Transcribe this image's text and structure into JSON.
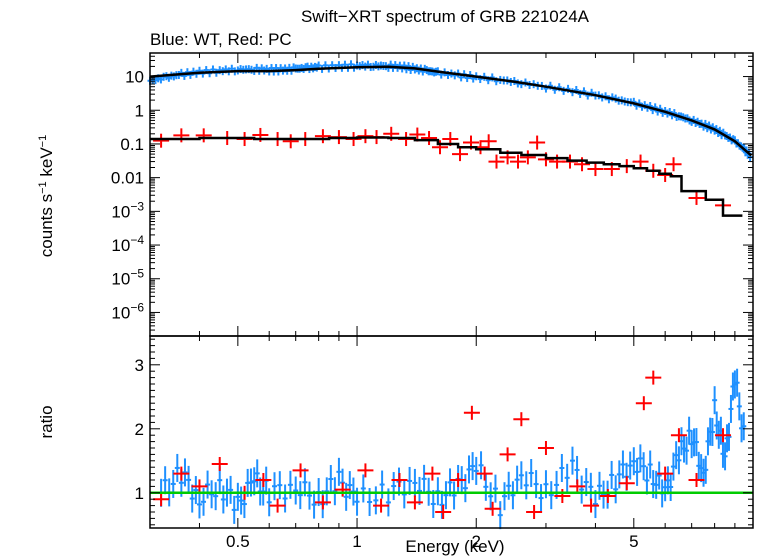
{
  "chart_data": {
    "type": "scatter",
    "title": "Swift−XRT spectrum of GRB 221024A",
    "subtitle": "Blue: WT, Red: PC",
    "xlabel": "Energy (keV)",
    "x_scale": "log",
    "xlim": [
      0.3,
      10
    ],
    "x_ticks": [
      0.5,
      1,
      2,
      5
    ],
    "x_tick_labels": [
      "0.5",
      "1",
      "2",
      "5"
    ],
    "panels": [
      {
        "id": "spectrum",
        "ylabel_base": "counts s",
        "ylabel_exp1": "−1",
        "ylabel_mid": " keV",
        "ylabel_exp2": "−1",
        "y_scale": "log",
        "ylim": [
          2e-07,
          50
        ],
        "y_ticks": [
          {
            "v": 10,
            "t": "10"
          },
          {
            "v": 1,
            "t": "1"
          },
          {
            "v": 0.1,
            "t": "0.1"
          },
          {
            "v": 0.01,
            "t": "0.01"
          },
          {
            "v": 0.001,
            "base": "10",
            "exp": "−3"
          },
          {
            "v": 0.0001,
            "base": "10",
            "exp": "−4"
          },
          {
            "v": 1e-05,
            "base": "10",
            "exp": "−5"
          },
          {
            "v": 1e-06,
            "base": "10",
            "exp": "−6"
          }
        ],
        "series": [
          {
            "name": "WT",
            "color": "#1e90ff",
            "points": [
              [
                0.3,
                7.5
              ],
              [
                0.33,
                9.5
              ],
              [
                0.36,
                11.5
              ],
              [
                0.4,
                13.5
              ],
              [
                0.45,
                15
              ],
              [
                0.5,
                16
              ],
              [
                0.55,
                16.5
              ],
              [
                0.6,
                16
              ],
              [
                0.65,
                16
              ],
              [
                0.7,
                17
              ],
              [
                0.75,
                18
              ],
              [
                0.8,
                19
              ],
              [
                0.9,
                20
              ],
              [
                1.0,
                21
              ],
              [
                1.1,
                21
              ],
              [
                1.2,
                20.5
              ],
              [
                1.3,
                19.5
              ],
              [
                1.4,
                17
              ],
              [
                1.5,
                15
              ],
              [
                1.6,
                13
              ],
              [
                1.8,
                11
              ],
              [
                2.0,
                9.5
              ],
              [
                2.3,
                8
              ],
              [
                2.6,
                6.5
              ],
              [
                3.0,
                5
              ],
              [
                3.5,
                3.8
              ],
              [
                4.0,
                2.8
              ],
              [
                4.5,
                2.1
              ],
              [
                5.0,
                1.6
              ],
              [
                5.5,
                1.2
              ],
              [
                6.0,
                0.9
              ],
              [
                6.5,
                0.68
              ],
              [
                7.0,
                0.5
              ],
              [
                7.5,
                0.37
              ],
              [
                8.0,
                0.27
              ],
              [
                8.5,
                0.18
              ],
              [
                9.0,
                0.12
              ],
              [
                9.5,
                0.07
              ],
              [
                9.9,
                0.04
              ]
            ]
          },
          {
            "name": "PC",
            "color": "#ff0000",
            "points": [
              [
                0.32,
                0.125
              ],
              [
                0.36,
                0.18
              ],
              [
                0.41,
                0.18
              ],
              [
                0.47,
                0.15
              ],
              [
                0.52,
                0.14
              ],
              [
                0.57,
                0.185
              ],
              [
                0.63,
                0.14
              ],
              [
                0.68,
                0.12
              ],
              [
                0.74,
                0.14
              ],
              [
                0.82,
                0.17
              ],
              [
                0.9,
                0.16
              ],
              [
                0.98,
                0.14
              ],
              [
                1.05,
                0.17
              ],
              [
                1.12,
                0.16
              ],
              [
                1.22,
                0.2
              ],
              [
                1.33,
                0.14
              ],
              [
                1.42,
                0.19
              ],
              [
                1.52,
                0.15
              ],
              [
                1.62,
                0.08
              ],
              [
                1.72,
                0.14
              ],
              [
                1.82,
                0.05
              ],
              [
                1.94,
                0.11
              ],
              [
                2.05,
                0.08
              ],
              [
                2.15,
                0.12
              ],
              [
                2.25,
                0.03
              ],
              [
                2.4,
                0.04
              ],
              [
                2.55,
                0.03
              ],
              [
                2.7,
                0.04
              ],
              [
                2.85,
                0.11
              ],
              [
                3.0,
                0.035
              ],
              [
                3.2,
                0.03
              ],
              [
                3.45,
                0.03
              ],
              [
                3.7,
                0.025
              ],
              [
                4.0,
                0.018
              ],
              [
                4.4,
                0.018
              ],
              [
                4.8,
                0.022
              ],
              [
                5.2,
                0.03
              ],
              [
                5.6,
                0.016
              ],
              [
                6.0,
                0.012
              ],
              [
                6.3,
                0.025
              ],
              [
                7.2,
                0.0025
              ],
              [
                8.4,
                0.0015
              ]
            ]
          }
        ],
        "models": [
          {
            "name": "WT model",
            "color": "#000000",
            "points": [
              [
                0.3,
                10
              ],
              [
                0.35,
                11.5
              ],
              [
                0.4,
                13
              ],
              [
                0.5,
                14.5
              ],
              [
                0.6,
                14.5
              ],
              [
                0.7,
                15.5
              ],
              [
                0.8,
                17
              ],
              [
                1.0,
                19
              ],
              [
                1.2,
                19.5
              ],
              [
                1.4,
                17.5
              ],
              [
                1.6,
                14
              ],
              [
                2.0,
                10
              ],
              [
                2.5,
                7
              ],
              [
                3.0,
                5
              ],
              [
                4.0,
                2.8
              ],
              [
                5.0,
                1.6
              ],
              [
                6.0,
                0.9
              ],
              [
                7.0,
                0.5
              ],
              [
                8.0,
                0.27
              ],
              [
                9.0,
                0.12
              ],
              [
                9.9,
                0.045
              ]
            ]
          },
          {
            "name": "PC model",
            "color": "#000000",
            "steps": [
              [
                0.3,
                0.14
              ],
              [
                0.4,
                0.15
              ],
              [
                0.55,
                0.14
              ],
              [
                0.7,
                0.14
              ],
              [
                0.85,
                0.15
              ],
              [
                1.0,
                0.155
              ],
              [
                1.2,
                0.15
              ],
              [
                1.4,
                0.13
              ],
              [
                1.6,
                0.1
              ],
              [
                1.8,
                0.08
              ],
              [
                2.0,
                0.07
              ],
              [
                2.3,
                0.055
              ],
              [
                2.6,
                0.047
              ],
              [
                3.0,
                0.038
              ],
              [
                3.4,
                0.032
              ],
              [
                3.8,
                0.028
              ],
              [
                4.2,
                0.025
              ],
              [
                4.6,
                0.022
              ],
              [
                5.0,
                0.019
              ],
              [
                5.4,
                0.016
              ],
              [
                5.8,
                0.013
              ],
              [
                6.2,
                0.011
              ],
              [
                6.6,
                0.004
              ],
              [
                7.6,
                0.0022
              ],
              [
                8.4,
                0.00075
              ],
              [
                9.4,
                0.00075
              ]
            ]
          }
        ]
      },
      {
        "id": "ratio",
        "ylabel": "ratio",
        "y_scale": "linear",
        "ylim": [
          0.45,
          3.45
        ],
        "y_ticks": [
          {
            "v": 1,
            "t": "1"
          },
          {
            "v": 2,
            "t": "2"
          },
          {
            "v": 3,
            "t": "3"
          }
        ],
        "reference_line": {
          "value": 1,
          "color": "#00cc00"
        },
        "series": [
          {
            "name": "WT ratio",
            "color": "#1e90ff",
            "points": [
              [
                0.32,
                1.0
              ],
              [
                0.36,
                1.3
              ],
              [
                0.4,
                0.9
              ],
              [
                0.45,
                1.1
              ],
              [
                0.5,
                0.8
              ],
              [
                0.55,
                1.2
              ],
              [
                0.6,
                1.0
              ],
              [
                0.7,
                1.1
              ],
              [
                0.8,
                0.9
              ],
              [
                0.9,
                1.2
              ],
              [
                1.0,
                0.9
              ],
              [
                1.2,
                1.0
              ],
              [
                1.4,
                1.2
              ],
              [
                1.6,
                0.9
              ],
              [
                1.8,
                1.1
              ],
              [
                2.0,
                1.4
              ],
              [
                2.3,
                0.8
              ],
              [
                2.6,
                1.3
              ],
              [
                3.0,
                1.0
              ],
              [
                3.5,
                1.4
              ],
              [
                4.0,
                0.9
              ],
              [
                4.5,
                1.2
              ],
              [
                5.0,
                1.5
              ],
              [
                5.5,
                1.3
              ],
              [
                6.0,
                1.0
              ],
              [
                6.5,
                1.6
              ],
              [
                7.0,
                1.9
              ],
              [
                7.5,
                1.3
              ],
              [
                8.0,
                2.3
              ],
              [
                8.5,
                1.5
              ],
              [
                9.0,
                2.8
              ],
              [
                9.6,
                1.7
              ]
            ]
          },
          {
            "name": "PC ratio",
            "color": "#ff0000",
            "points": [
              [
                0.32,
                0.9
              ],
              [
                0.36,
                1.3
              ],
              [
                0.4,
                1.1
              ],
              [
                0.45,
                1.45
              ],
              [
                0.52,
                1.0
              ],
              [
                0.58,
                1.2
              ],
              [
                0.63,
                0.8
              ],
              [
                0.72,
                1.35
              ],
              [
                0.82,
                0.85
              ],
              [
                0.92,
                1.05
              ],
              [
                1.05,
                1.35
              ],
              [
                1.15,
                0.8
              ],
              [
                1.28,
                1.2
              ],
              [
                1.4,
                0.85
              ],
              [
                1.55,
                1.3
              ],
              [
                1.65,
                0.7
              ],
              [
                1.8,
                1.2
              ],
              [
                1.95,
                2.25
              ],
              [
                2.1,
                1.3
              ],
              [
                2.2,
                0.75
              ],
              [
                2.4,
                1.6
              ],
              [
                2.6,
                2.15
              ],
              [
                2.8,
                0.7
              ],
              [
                3.0,
                1.7
              ],
              [
                3.3,
                0.95
              ],
              [
                3.6,
                1.1
              ],
              [
                3.9,
                0.8
              ],
              [
                4.3,
                0.95
              ],
              [
                4.8,
                1.15
              ],
              [
                5.3,
                2.4
              ],
              [
                5.6,
                2.8
              ],
              [
                6.0,
                1.3
              ],
              [
                6.5,
                1.9
              ],
              [
                7.2,
                1.2
              ],
              [
                8.4,
                1.9
              ]
            ]
          }
        ]
      }
    ]
  }
}
